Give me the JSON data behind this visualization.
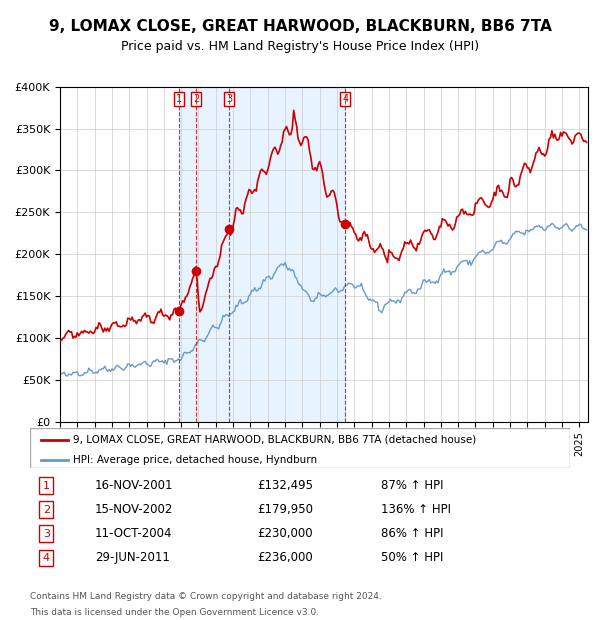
{
  "title": "9, LOMAX CLOSE, GREAT HARWOOD, BLACKBURN, BB6 7TA",
  "subtitle": "Price paid vs. HM Land Registry's House Price Index (HPI)",
  "property_label": "9, LOMAX CLOSE, GREAT HARWOOD, BLACKBURN, BB6 7TA (detached house)",
  "hpi_label": "HPI: Average price, detached house, Hyndburn",
  "footer1": "Contains HM Land Registry data © Crown copyright and database right 2024.",
  "footer2": "This data is licensed under the Open Government Licence v3.0.",
  "transactions": [
    {
      "num": 1,
      "date": "16-NOV-2001",
      "price": 132495,
      "pct": "87%",
      "dir": "↑"
    },
    {
      "num": 2,
      "date": "15-NOV-2002",
      "price": 179950,
      "pct": "136%",
      "dir": "↑"
    },
    {
      "num": 3,
      "date": "11-OCT-2004",
      "price": 230000,
      "pct": "86%",
      "dir": "↑"
    },
    {
      "num": 4,
      "date": "29-JUN-2011",
      "price": 236000,
      "pct": "50%",
      "dir": "↑"
    }
  ],
  "transaction_dates_decimal": [
    2001.88,
    2002.87,
    2004.78,
    2011.49
  ],
  "transaction_prices": [
    132495,
    179950,
    230000,
    236000
  ],
  "ylim": [
    0,
    400000
  ],
  "yticks": [
    0,
    50000,
    100000,
    150000,
    200000,
    250000,
    300000,
    350000,
    400000
  ],
  "property_color": "#cc0000",
  "hpi_color": "#6699cc",
  "shaded_region": [
    2001.88,
    2011.49
  ],
  "background_color": "#ffffff",
  "grid_color": "#cccccc"
}
